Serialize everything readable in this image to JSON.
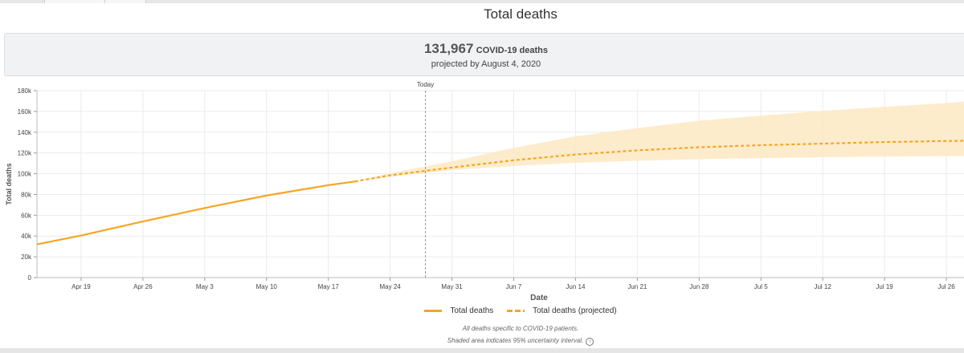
{
  "page": {
    "title": "Total deaths",
    "summary_number": "131,967",
    "summary_label": "COVID-19 deaths",
    "summary_sub": "projected by August 4, 2020"
  },
  "footnotes": {
    "line1": "All deaths specific to COVID-19 patients.",
    "line2": "Shaded area indicates 95% uncertainty interval."
  },
  "legend": {
    "actual": "Total deaths",
    "projected": "Total deaths (projected)"
  },
  "colors": {
    "line": "#f5a623",
    "band": "#fde9c3",
    "grid": "#ebebeb",
    "today_line": "#999999"
  },
  "chart_data": {
    "type": "line",
    "xlabel": "Date",
    "ylabel": "Total deaths",
    "x_range": [
      "2020-04-14",
      "2020-07-28"
    ],
    "ylim": [
      0,
      180000
    ],
    "y_ticks": [
      0,
      20000,
      40000,
      60000,
      80000,
      100000,
      120000,
      140000,
      160000,
      180000
    ],
    "y_tick_labels": [
      "0",
      "20k",
      "40k",
      "60k",
      "80k",
      "100k",
      "120k",
      "140k",
      "160k",
      "180k"
    ],
    "x_ticks": [
      "2020-04-19",
      "2020-04-26",
      "2020-05-03",
      "2020-05-10",
      "2020-05-17",
      "2020-05-24",
      "2020-05-31",
      "2020-06-07",
      "2020-06-14",
      "2020-06-21",
      "2020-06-28",
      "2020-07-05",
      "2020-07-12",
      "2020-07-19",
      "2020-07-26"
    ],
    "x_tick_labels": [
      "Apr 19",
      "Apr 26",
      "May 3",
      "May 10",
      "May 17",
      "May 24",
      "May 31",
      "Jun 7",
      "Jun 14",
      "Jun 21",
      "Jun 28",
      "Jul 5",
      "Jul 12",
      "Jul 19",
      "Jul 26"
    ],
    "today": {
      "date": "2020-05-28",
      "label": "Today"
    },
    "grid": true,
    "legend_position": "bottom-center",
    "series": [
      {
        "name": "Total deaths",
        "style": "solid",
        "points": [
          {
            "x": "2020-04-14",
            "y": 32000
          },
          {
            "x": "2020-04-19",
            "y": 40500
          },
          {
            "x": "2020-04-26",
            "y": 54000
          },
          {
            "x": "2020-05-03",
            "y": 67000
          },
          {
            "x": "2020-05-10",
            "y": 79000
          },
          {
            "x": "2020-05-17",
            "y": 89000
          },
          {
            "x": "2020-05-20",
            "y": 92500
          }
        ]
      },
      {
        "name": "Total deaths (projected)",
        "style": "dashed",
        "points": [
          {
            "x": "2020-05-20",
            "y": 92500
          },
          {
            "x": "2020-05-24",
            "y": 98500
          },
          {
            "x": "2020-05-31",
            "y": 106000
          },
          {
            "x": "2020-06-07",
            "y": 113000
          },
          {
            "x": "2020-06-14",
            "y": 118500
          },
          {
            "x": "2020-06-21",
            "y": 122500
          },
          {
            "x": "2020-06-28",
            "y": 125500
          },
          {
            "x": "2020-07-05",
            "y": 127500
          },
          {
            "x": "2020-07-12",
            "y": 129000
          },
          {
            "x": "2020-07-19",
            "y": 130500
          },
          {
            "x": "2020-07-26",
            "y": 131500
          },
          {
            "x": "2020-07-28",
            "y": 131700
          }
        ]
      }
    ],
    "uncertainty_band": {
      "points": [
        {
          "x": "2020-05-20",
          "lo": 92500,
          "hi": 92500
        },
        {
          "x": "2020-05-24",
          "lo": 97000,
          "hi": 100500
        },
        {
          "x": "2020-05-31",
          "lo": 103500,
          "hi": 112000
        },
        {
          "x": "2020-06-07",
          "lo": 107500,
          "hi": 125000
        },
        {
          "x": "2020-06-14",
          "lo": 110500,
          "hi": 136000
        },
        {
          "x": "2020-06-21",
          "lo": 112500,
          "hi": 144000
        },
        {
          "x": "2020-06-28",
          "lo": 114000,
          "hi": 151000
        },
        {
          "x": "2020-07-05",
          "lo": 115000,
          "hi": 156000
        },
        {
          "x": "2020-07-12",
          "lo": 116000,
          "hi": 160500
        },
        {
          "x": "2020-07-19",
          "lo": 116500,
          "hi": 164500
        },
        {
          "x": "2020-07-26",
          "lo": 117000,
          "hi": 168000
        },
        {
          "x": "2020-07-28",
          "lo": 117000,
          "hi": 169500
        }
      ]
    }
  }
}
